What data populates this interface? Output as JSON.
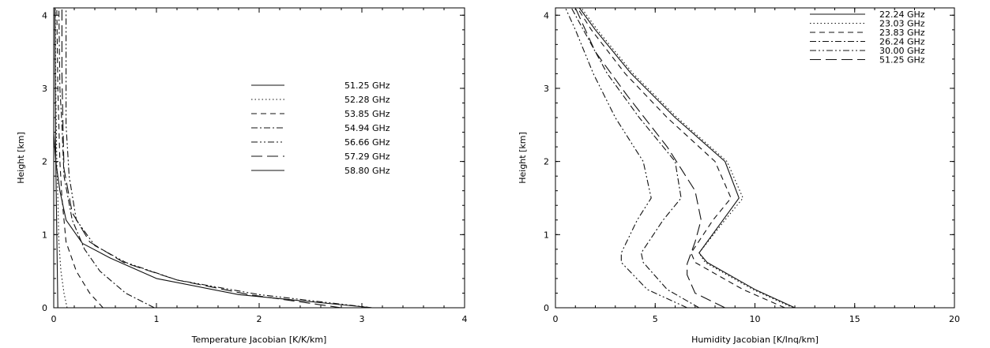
{
  "chart_data": [
    {
      "id": "temperature-jacobian",
      "type": "line",
      "title": "",
      "xlabel": "Temperature Jacobian [K/K/km]",
      "ylabel": "Height [km]",
      "xlim": [
        0,
        4
      ],
      "ylim": [
        0,
        4.1
      ],
      "x_ticks": [
        "0",
        "1",
        "2",
        "3",
        "4"
      ],
      "y_ticks": [
        "0",
        "1",
        "2",
        "3",
        "4"
      ],
      "grid": false,
      "legend_position": "top-right",
      "series": [
        {
          "name": "51.25 GHz",
          "dash": "solid",
          "points": [
            [
              0.04,
              0.0
            ],
            [
              0.035,
              0.5
            ],
            [
              0.03,
              1.0
            ],
            [
              0.025,
              1.5
            ],
            [
              0.02,
              2.0
            ],
            [
              0.018,
              2.5
            ],
            [
              0.016,
              3.0
            ],
            [
              0.014,
              3.5
            ],
            [
              0.012,
              4.1
            ]
          ]
        },
        {
          "name": "52.28 GHz",
          "dash": "dotted",
          "points": [
            [
              0.13,
              0.0
            ],
            [
              0.1,
              0.2
            ],
            [
              0.07,
              0.5
            ],
            [
              0.05,
              0.9
            ],
            [
              0.04,
              1.5
            ],
            [
              0.03,
              2.0
            ],
            [
              0.02,
              3.0
            ],
            [
              0.015,
              4.1
            ]
          ]
        },
        {
          "name": "53.85 GHz",
          "dash": "dashed",
          "points": [
            [
              0.48,
              0.0
            ],
            [
              0.35,
              0.2
            ],
            [
              0.22,
              0.5
            ],
            [
              0.12,
              0.9
            ],
            [
              0.08,
              1.5
            ],
            [
              0.06,
              2.0
            ],
            [
              0.04,
              3.0
            ],
            [
              0.03,
              4.1
            ]
          ]
        },
        {
          "name": "54.94 GHz",
          "dash": "dash-dot",
          "points": [
            [
              0.98,
              0.0
            ],
            [
              0.7,
              0.2
            ],
            [
              0.45,
              0.5
            ],
            [
              0.3,
              0.8
            ],
            [
              0.18,
              1.2
            ],
            [
              0.1,
              1.8
            ],
            [
              0.08,
              2.5
            ],
            [
              0.06,
              3.0
            ],
            [
              0.05,
              4.1
            ]
          ]
        },
        {
          "name": "56.66 GHz",
          "dash": "dash-dot-dot",
          "points": [
            [
              3.1,
              0.0
            ],
            [
              2.0,
              0.18
            ],
            [
              1.2,
              0.38
            ],
            [
              0.7,
              0.62
            ],
            [
              0.4,
              0.85
            ],
            [
              0.22,
              1.2
            ],
            [
              0.15,
              1.8
            ],
            [
              0.12,
              2.5
            ],
            [
              0.12,
              3.0
            ],
            [
              0.12,
              4.1
            ]
          ]
        },
        {
          "name": "57.29 GHz",
          "dash": "long-dash",
          "points": [
            [
              2.8,
              0.0
            ],
            [
              1.9,
              0.18
            ],
            [
              1.2,
              0.38
            ],
            [
              0.68,
              0.62
            ],
            [
              0.35,
              0.9
            ],
            [
              0.18,
              1.3
            ],
            [
              0.1,
              1.9
            ],
            [
              0.09,
              2.5
            ],
            [
              0.08,
              3.2
            ],
            [
              0.08,
              4.1
            ]
          ]
        },
        {
          "name": "58.80 GHz",
          "dash": "solid",
          "points": [
            [
              3.1,
              0.0
            ],
            [
              1.8,
              0.18
            ],
            [
              1.0,
              0.4
            ],
            [
              0.55,
              0.68
            ],
            [
              0.28,
              0.88
            ],
            [
              0.12,
              1.2
            ],
            [
              0.06,
              1.6
            ],
            [
              0.02,
              2.0
            ],
            [
              0.0,
              2.4
            ],
            [
              0.0,
              3.0
            ],
            [
              0.0,
              4.1
            ]
          ]
        }
      ]
    },
    {
      "id": "humidity-jacobian",
      "type": "line",
      "title": "",
      "xlabel": "Humidity Jacobian [K/Inq/km]",
      "ylabel": "Height [km]",
      "xlim": [
        0,
        20
      ],
      "ylim": [
        0,
        4.1
      ],
      "x_ticks": [
        "0",
        "5",
        "10",
        "15",
        "20"
      ],
      "y_ticks": [
        "0",
        "1",
        "2",
        "3",
        "4"
      ],
      "grid": false,
      "legend_position": "top-right",
      "series": [
        {
          "name": "22.24 GHz",
          "dash": "solid",
          "points": [
            [
              12.0,
              0.0
            ],
            [
              10.0,
              0.25
            ],
            [
              7.6,
              0.62
            ],
            [
              7.2,
              0.75
            ],
            [
              8.4,
              1.2
            ],
            [
              9.2,
              1.5
            ],
            [
              8.5,
              2.0
            ],
            [
              6.0,
              2.6
            ],
            [
              3.8,
              3.2
            ],
            [
              2.0,
              3.8
            ],
            [
              1.2,
              4.1
            ]
          ]
        },
        {
          "name": "23.03 GHz",
          "dash": "dotted",
          "points": [
            [
              11.9,
              0.0
            ],
            [
              9.9,
              0.25
            ],
            [
              7.5,
              0.62
            ],
            [
              7.2,
              0.75
            ],
            [
              8.5,
              1.2
            ],
            [
              9.4,
              1.5
            ],
            [
              8.6,
              2.0
            ],
            [
              6.1,
              2.6
            ],
            [
              3.9,
              3.2
            ],
            [
              2.1,
              3.8
            ],
            [
              1.3,
              4.1
            ]
          ]
        },
        {
          "name": "23.83 GHz",
          "dash": "dashed",
          "points": [
            [
              11.5,
              0.0
            ],
            [
              9.4,
              0.25
            ],
            [
              7.0,
              0.62
            ],
            [
              6.8,
              0.75
            ],
            [
              7.9,
              1.2
            ],
            [
              8.8,
              1.5
            ],
            [
              8.0,
              2.0
            ],
            [
              5.6,
              2.6
            ],
            [
              3.5,
              3.2
            ],
            [
              1.8,
              3.8
            ],
            [
              1.1,
              4.1
            ]
          ]
        },
        {
          "name": "26.24 GHz",
          "dash": "dash-dot",
          "points": [
            [
              7.2,
              0.0
            ],
            [
              5.6,
              0.25
            ],
            [
              4.4,
              0.62
            ],
            [
              4.3,
              0.75
            ],
            [
              5.4,
              1.2
            ],
            [
              6.3,
              1.5
            ],
            [
              6.0,
              2.0
            ],
            [
              4.2,
              2.6
            ],
            [
              2.6,
              3.2
            ],
            [
              1.4,
              3.8
            ],
            [
              0.8,
              4.1
            ]
          ]
        },
        {
          "name": "30.00 GHz",
          "dash": "dash-dot-dot",
          "points": [
            [
              6.6,
              0.0
            ],
            [
              4.6,
              0.25
            ],
            [
              3.3,
              0.62
            ],
            [
              3.3,
              0.75
            ],
            [
              4.1,
              1.2
            ],
            [
              4.8,
              1.5
            ],
            [
              4.4,
              2.0
            ],
            [
              3.0,
              2.6
            ],
            [
              1.9,
              3.2
            ],
            [
              1.0,
              3.8
            ],
            [
              0.5,
              4.1
            ]
          ]
        },
        {
          "name": "51.25 GHz",
          "dash": "long-dash",
          "points": [
            [
              8.5,
              0.0
            ],
            [
              7.0,
              0.2
            ],
            [
              6.6,
              0.45
            ],
            [
              6.6,
              0.6
            ],
            [
              7.0,
              0.9
            ],
            [
              7.3,
              1.2
            ],
            [
              7.0,
              1.6
            ],
            [
              5.6,
              2.2
            ],
            [
              3.6,
              2.9
            ],
            [
              2.0,
              3.5
            ],
            [
              1.0,
              4.1
            ]
          ]
        }
      ]
    }
  ]
}
